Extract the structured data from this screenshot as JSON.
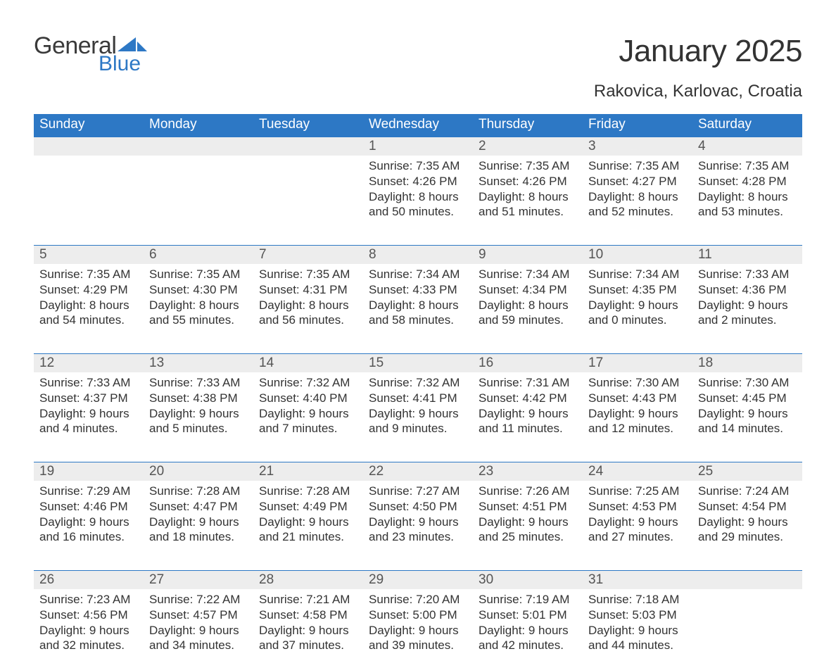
{
  "logo": {
    "text_general": "General",
    "text_blue": "Blue"
  },
  "title": "January 2025",
  "location": "Rakovica, Karlovac, Croatia",
  "colors": {
    "header_bg": "#2d78c5",
    "header_text": "#ffffff",
    "daynum_bg": "#ededed",
    "daynum_text": "#555555",
    "body_text": "#333333",
    "row_divider": "#2d78c5",
    "page_bg": "#ffffff"
  },
  "fonts": {
    "title_size_pt": 33,
    "location_size_pt": 18,
    "header_size_pt": 14,
    "daynum_size_pt": 14,
    "detail_size_pt": 13
  },
  "day_headers": [
    "Sunday",
    "Monday",
    "Tuesday",
    "Wednesday",
    "Thursday",
    "Friday",
    "Saturday"
  ],
  "weeks": [
    [
      null,
      null,
      null,
      {
        "n": "1",
        "sunrise": "7:35 AM",
        "sunset": "4:26 PM",
        "dl": "8 hours and 50 minutes."
      },
      {
        "n": "2",
        "sunrise": "7:35 AM",
        "sunset": "4:26 PM",
        "dl": "8 hours and 51 minutes."
      },
      {
        "n": "3",
        "sunrise": "7:35 AM",
        "sunset": "4:27 PM",
        "dl": "8 hours and 52 minutes."
      },
      {
        "n": "4",
        "sunrise": "7:35 AM",
        "sunset": "4:28 PM",
        "dl": "8 hours and 53 minutes."
      }
    ],
    [
      {
        "n": "5",
        "sunrise": "7:35 AM",
        "sunset": "4:29 PM",
        "dl": "8 hours and 54 minutes."
      },
      {
        "n": "6",
        "sunrise": "7:35 AM",
        "sunset": "4:30 PM",
        "dl": "8 hours and 55 minutes."
      },
      {
        "n": "7",
        "sunrise": "7:35 AM",
        "sunset": "4:31 PM",
        "dl": "8 hours and 56 minutes."
      },
      {
        "n": "8",
        "sunrise": "7:34 AM",
        "sunset": "4:33 PM",
        "dl": "8 hours and 58 minutes."
      },
      {
        "n": "9",
        "sunrise": "7:34 AM",
        "sunset": "4:34 PM",
        "dl": "8 hours and 59 minutes."
      },
      {
        "n": "10",
        "sunrise": "7:34 AM",
        "sunset": "4:35 PM",
        "dl": "9 hours and 0 minutes."
      },
      {
        "n": "11",
        "sunrise": "7:33 AM",
        "sunset": "4:36 PM",
        "dl": "9 hours and 2 minutes."
      }
    ],
    [
      {
        "n": "12",
        "sunrise": "7:33 AM",
        "sunset": "4:37 PM",
        "dl": "9 hours and 4 minutes."
      },
      {
        "n": "13",
        "sunrise": "7:33 AM",
        "sunset": "4:38 PM",
        "dl": "9 hours and 5 minutes."
      },
      {
        "n": "14",
        "sunrise": "7:32 AM",
        "sunset": "4:40 PM",
        "dl": "9 hours and 7 minutes."
      },
      {
        "n": "15",
        "sunrise": "7:32 AM",
        "sunset": "4:41 PM",
        "dl": "9 hours and 9 minutes."
      },
      {
        "n": "16",
        "sunrise": "7:31 AM",
        "sunset": "4:42 PM",
        "dl": "9 hours and 11 minutes."
      },
      {
        "n": "17",
        "sunrise": "7:30 AM",
        "sunset": "4:43 PM",
        "dl": "9 hours and 12 minutes."
      },
      {
        "n": "18",
        "sunrise": "7:30 AM",
        "sunset": "4:45 PM",
        "dl": "9 hours and 14 minutes."
      }
    ],
    [
      {
        "n": "19",
        "sunrise": "7:29 AM",
        "sunset": "4:46 PM",
        "dl": "9 hours and 16 minutes."
      },
      {
        "n": "20",
        "sunrise": "7:28 AM",
        "sunset": "4:47 PM",
        "dl": "9 hours and 18 minutes."
      },
      {
        "n": "21",
        "sunrise": "7:28 AM",
        "sunset": "4:49 PM",
        "dl": "9 hours and 21 minutes."
      },
      {
        "n": "22",
        "sunrise": "7:27 AM",
        "sunset": "4:50 PM",
        "dl": "9 hours and 23 minutes."
      },
      {
        "n": "23",
        "sunrise": "7:26 AM",
        "sunset": "4:51 PM",
        "dl": "9 hours and 25 minutes."
      },
      {
        "n": "24",
        "sunrise": "7:25 AM",
        "sunset": "4:53 PM",
        "dl": "9 hours and 27 minutes."
      },
      {
        "n": "25",
        "sunrise": "7:24 AM",
        "sunset": "4:54 PM",
        "dl": "9 hours and 29 minutes."
      }
    ],
    [
      {
        "n": "26",
        "sunrise": "7:23 AM",
        "sunset": "4:56 PM",
        "dl": "9 hours and 32 minutes."
      },
      {
        "n": "27",
        "sunrise": "7:22 AM",
        "sunset": "4:57 PM",
        "dl": "9 hours and 34 minutes."
      },
      {
        "n": "28",
        "sunrise": "7:21 AM",
        "sunset": "4:58 PM",
        "dl": "9 hours and 37 minutes."
      },
      {
        "n": "29",
        "sunrise": "7:20 AM",
        "sunset": "5:00 PM",
        "dl": "9 hours and 39 minutes."
      },
      {
        "n": "30",
        "sunrise": "7:19 AM",
        "sunset": "5:01 PM",
        "dl": "9 hours and 42 minutes."
      },
      {
        "n": "31",
        "sunrise": "7:18 AM",
        "sunset": "5:03 PM",
        "dl": "9 hours and 44 minutes."
      },
      null
    ]
  ],
  "labels": {
    "sunrise": "Sunrise: ",
    "sunset": "Sunset: ",
    "daylight": "Daylight: "
  }
}
